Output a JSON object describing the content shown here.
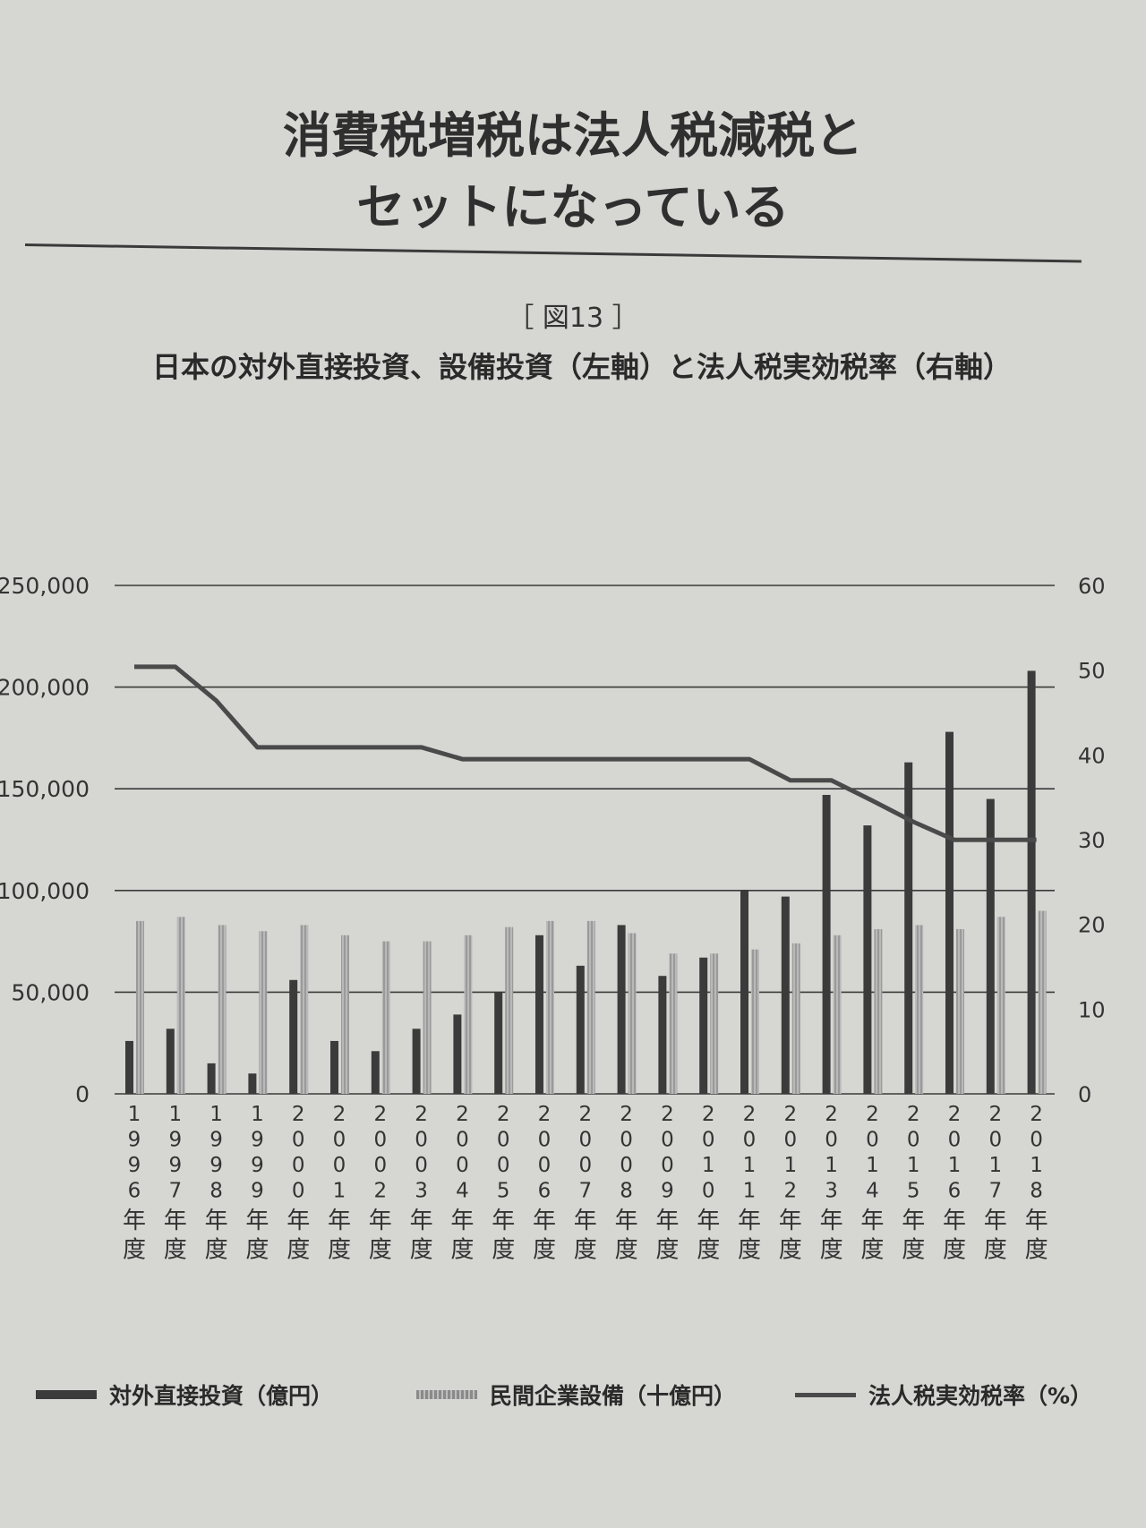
{
  "heading": {
    "line1": "消費税増税は法人税減税と",
    "line2": "セットになっている"
  },
  "figure_label": "［ 図13 ］",
  "subtitle": "日本の対外直接投資、設備投資（左軸）と法人税実効税率（右軸）",
  "colors": {
    "fdi_bar": "#3b3b3b",
    "capex_bar": "#9a9a9a",
    "tax_line": "#4a4a4a",
    "background": "#d6d6d3"
  },
  "legend": {
    "fdi": "対外直接投資（億円）",
    "capex": "民間企業設備（十億円）",
    "tax": "法人税実効税率（%）"
  },
  "chart_data": {
    "type": "bar",
    "title": "日本の対外直接投資、設備投資（左軸）と法人税実効税率（右軸）",
    "categories": [
      "1996年度",
      "1997年度",
      "1998年度",
      "1999年度",
      "2000年度",
      "2001年度",
      "2002年度",
      "2003年度",
      "2004年度",
      "2005年度",
      "2006年度",
      "2007年度",
      "2008年度",
      "2009年度",
      "2010年度",
      "2011年度",
      "2012年度",
      "2013年度",
      "2014年度",
      "2015年度",
      "2016年度",
      "2017年度",
      "2018年度"
    ],
    "category_labels": [
      [
        "1",
        "9",
        "9",
        "6",
        "年",
        "度"
      ],
      [
        "1",
        "9",
        "9",
        "7",
        "年",
        "度"
      ],
      [
        "1",
        "9",
        "9",
        "8",
        "年",
        "度"
      ],
      [
        "1",
        "9",
        "9",
        "9",
        "年",
        "度"
      ],
      [
        "2",
        "0",
        "0",
        "0",
        "年",
        "度"
      ],
      [
        "2",
        "0",
        "0",
        "1",
        "年",
        "度"
      ],
      [
        "2",
        "0",
        "0",
        "2",
        "年",
        "度"
      ],
      [
        "2",
        "0",
        "0",
        "3",
        "年",
        "度"
      ],
      [
        "2",
        "0",
        "0",
        "4",
        "年",
        "度"
      ],
      [
        "2",
        "0",
        "0",
        "5",
        "年",
        "度"
      ],
      [
        "2",
        "0",
        "0",
        "6",
        "年",
        "度"
      ],
      [
        "2",
        "0",
        "0",
        "7",
        "年",
        "度"
      ],
      [
        "2",
        "0",
        "0",
        "8",
        "年",
        "度"
      ],
      [
        "2",
        "0",
        "0",
        "9",
        "年",
        "度"
      ],
      [
        "2",
        "0",
        "1",
        "0",
        "年",
        "度"
      ],
      [
        "2",
        "0",
        "1",
        "1",
        "年",
        "度"
      ],
      [
        "2",
        "0",
        "1",
        "2",
        "年",
        "度"
      ],
      [
        "2",
        "0",
        "1",
        "3",
        "年",
        "度"
      ],
      [
        "2",
        "0",
        "1",
        "4",
        "年",
        "度"
      ],
      [
        "2",
        "0",
        "1",
        "5",
        "年",
        "度"
      ],
      [
        "2",
        "0",
        "1",
        "6",
        "年",
        "度"
      ],
      [
        "2",
        "0",
        "1",
        "7",
        "年",
        "度"
      ],
      [
        "2",
        "0",
        "1",
        "8",
        "年",
        "度"
      ]
    ],
    "series": [
      {
        "name": "対外直接投資（億円）",
        "type": "bar",
        "axis": "left",
        "values": [
          26000,
          32000,
          15000,
          10000,
          56000,
          26000,
          21000,
          32000,
          39000,
          50000,
          78000,
          63000,
          83000,
          58000,
          67000,
          100000,
          97000,
          147000,
          132000,
          163000,
          178000,
          145000,
          208000
        ]
      },
      {
        "name": "民間企業設備（十億円）",
        "type": "bar",
        "axis": "left",
        "values": [
          85000,
          87000,
          83000,
          80000,
          83000,
          78000,
          75000,
          75000,
          78000,
          82000,
          85000,
          85000,
          79000,
          69000,
          69000,
          71000,
          74000,
          78000,
          81000,
          83000,
          81000,
          87000,
          90000
        ]
      },
      {
        "name": "法人税実効税率（%）",
        "type": "line",
        "axis": "right",
        "values": [
          50.4,
          50.4,
          46.4,
          40.9,
          40.9,
          40.9,
          40.9,
          40.9,
          39.5,
          39.5,
          39.5,
          39.5,
          39.5,
          39.5,
          39.5,
          39.5,
          37.0,
          37.0,
          34.6,
          32.1,
          29.97,
          29.97,
          29.97
        ]
      }
    ],
    "y_left": {
      "ylim": [
        0,
        250000
      ],
      "ticks": [
        0,
        50000,
        100000,
        150000,
        200000,
        250000
      ],
      "tick_labels": [
        "0",
        "50,000",
        "100,000",
        "150,000",
        "200,000",
        "250,000"
      ]
    },
    "y_right": {
      "ylim": [
        0,
        60
      ],
      "ticks": [
        0,
        10,
        20,
        30,
        40,
        50,
        60
      ],
      "tick_labels": [
        "0",
        "10",
        "20",
        "30",
        "40",
        "50",
        "60"
      ]
    },
    "grid": "horizontal",
    "legend_position": "bottom"
  }
}
